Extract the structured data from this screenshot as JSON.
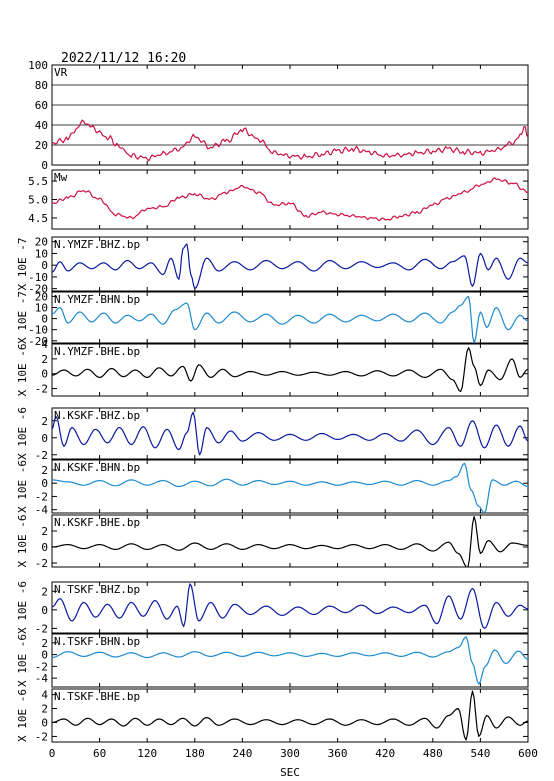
{
  "timestamp": "2022/11/12  16:20",
  "chart_data": {
    "type": "line",
    "xlabel": "SEC",
    "xlim": [
      0,
      600
    ],
    "xticks": [
      0,
      60,
      120,
      180,
      240,
      300,
      360,
      420,
      480,
      540,
      600
    ],
    "colors": {
      "vr_mw": "#cc1144",
      "dark_blue": "#0a1aa0",
      "light_blue": "#1c8ad0",
      "black": "#000000"
    },
    "panels": [
      {
        "id": "vr",
        "label": "VR",
        "ylabel": "",
        "ylim": [
          0,
          100
        ],
        "yticks": [
          "0",
          "20",
          "40",
          "60",
          "80",
          "100"
        ],
        "grid": true,
        "color": "#cc1144",
        "x": [
          0,
          20,
          30,
          40,
          50,
          70,
          85,
          100,
          120,
          140,
          160,
          180,
          200,
          220,
          240,
          260,
          280,
          300,
          320,
          340,
          360,
          380,
          400,
          420,
          440,
          460,
          480,
          500,
          520,
          540,
          560,
          580,
          590,
          595,
          600
        ],
        "y": [
          22,
          26,
          36,
          44,
          37,
          28,
          18,
          9,
          7,
          11,
          16,
          28,
          18,
          24,
          35,
          26,
          12,
          9,
          8,
          11,
          14,
          16,
          13,
          9,
          10,
          12,
          14,
          16,
          13,
          12,
          15,
          22,
          28,
          38,
          28
        ]
      },
      {
        "id": "mw",
        "label": "Mw",
        "ylabel": "",
        "ylim": [
          4.2,
          5.8
        ],
        "yticks": [
          "4.5",
          "5.0",
          "5.5"
        ],
        "grid": false,
        "color": "#cc1144",
        "x": [
          0,
          20,
          40,
          60,
          80,
          100,
          120,
          140,
          160,
          180,
          200,
          220,
          240,
          260,
          280,
          300,
          320,
          340,
          360,
          380,
          400,
          420,
          440,
          460,
          480,
          500,
          520,
          540,
          560,
          580,
          600
        ],
        "y": [
          4.9,
          5.05,
          5.25,
          5.0,
          4.6,
          4.5,
          4.75,
          4.8,
          5.05,
          5.15,
          5.0,
          5.2,
          5.35,
          5.2,
          4.85,
          4.9,
          4.55,
          4.65,
          4.6,
          4.55,
          4.5,
          4.45,
          4.55,
          4.65,
          4.85,
          5.05,
          5.2,
          5.4,
          5.55,
          5.45,
          5.2
        ]
      },
      {
        "id": "ymzf_bhz",
        "label": "N.YMZF.BHZ.bp",
        "ylabel": "X 10E -7",
        "ylim": [
          -22,
          24
        ],
        "yticks": [
          "-20",
          "-10",
          "0",
          "10",
          "20"
        ],
        "grid": false,
        "color": "#0a1aa0",
        "x": [
          0,
          10,
          20,
          35,
          50,
          65,
          80,
          95,
          110,
          125,
          140,
          150,
          160,
          165,
          170,
          175,
          180,
          195,
          210,
          230,
          250,
          270,
          290,
          310,
          330,
          350,
          370,
          390,
          410,
          430,
          450,
          470,
          490,
          505,
          520,
          530,
          540,
          550,
          560,
          575,
          590,
          600
        ],
        "y": [
          -6,
          3,
          -5,
          2,
          -3,
          2,
          -4,
          4,
          -3,
          2,
          -8,
          6,
          -12,
          14,
          18,
          -8,
          -20,
          6,
          -5,
          3,
          -4,
          4,
          -3,
          3,
          -5,
          4,
          -3,
          3,
          -2,
          2,
          -4,
          5,
          -3,
          3,
          8,
          -18,
          10,
          -4,
          6,
          -12,
          6,
          2
        ]
      },
      {
        "id": "ymzf_bhn",
        "label": "N.YMZF.BHN.bp",
        "ylabel": "X 10E -7",
        "ylim": [
          -22,
          24
        ],
        "yticks": [
          "-20",
          "-10",
          "0",
          "10",
          "20"
        ],
        "grid": false,
        "color": "#1c8ad0",
        "x": [
          0,
          10,
          20,
          35,
          50,
          65,
          80,
          95,
          110,
          125,
          140,
          155,
          170,
          180,
          195,
          210,
          230,
          250,
          270,
          290,
          310,
          330,
          350,
          370,
          390,
          410,
          430,
          450,
          470,
          490,
          505,
          515,
          525,
          532,
          540,
          548,
          560,
          575,
          590,
          600
        ],
        "y": [
          4,
          10,
          -4,
          6,
          -3,
          5,
          -4,
          3,
          -2,
          4,
          -5,
          8,
          14,
          -10,
          5,
          -4,
          6,
          -3,
          4,
          -5,
          3,
          -4,
          4,
          -3,
          3,
          -2,
          4,
          -3,
          5,
          -4,
          6,
          12,
          20,
          -22,
          6,
          -8,
          10,
          -10,
          3,
          -2
        ]
      },
      {
        "id": "ymzf_bhe",
        "label": "N.YMZF.BHE.bp",
        "ylabel": "X 10E -6",
        "ylim": [
          -3,
          4
        ],
        "yticks": [
          "-2",
          "0",
          "2",
          "4"
        ],
        "grid": false,
        "color": "#000000",
        "x": [
          0,
          15,
          30,
          45,
          60,
          75,
          90,
          105,
          120,
          135,
          150,
          165,
          175,
          185,
          200,
          215,
          230,
          250,
          270,
          290,
          310,
          330,
          350,
          370,
          390,
          410,
          430,
          450,
          470,
          490,
          505,
          515,
          525,
          532,
          540,
          550,
          565,
          580,
          590,
          600
        ],
        "y": [
          -0.2,
          0.5,
          -0.3,
          0.6,
          -0.5,
          0.7,
          -0.4,
          0.5,
          -0.5,
          0.8,
          -0.3,
          1.0,
          -1.0,
          1.2,
          -0.5,
          0.6,
          -0.4,
          0.3,
          -0.2,
          0.3,
          -0.2,
          0.2,
          -0.2,
          0.3,
          -0.3,
          0.4,
          -0.3,
          0.5,
          -0.5,
          0.6,
          -0.8,
          -2.4,
          3.5,
          1.0,
          -1.6,
          0.5,
          -0.8,
          2.0,
          -0.5,
          0.6
        ]
      },
      {
        "id": "kskf_bhz",
        "label": "N.KSKF.BHZ.bp",
        "ylabel": "X 10E -6",
        "ylim": [
          -2.5,
          3.5
        ],
        "yticks": [
          "-2",
          "0",
          "2"
        ],
        "grid": false,
        "color": "#0a1aa0",
        "x": [
          0,
          5,
          15,
          25,
          40,
          55,
          70,
          85,
          100,
          115,
          130,
          145,
          160,
          170,
          178,
          186,
          195,
          210,
          225,
          240,
          260,
          280,
          300,
          320,
          340,
          360,
          380,
          400,
          420,
          440,
          460,
          480,
          500,
          515,
          530,
          545,
          560,
          575,
          590,
          600
        ],
        "y": [
          1.0,
          2.5,
          -1.0,
          1.2,
          -0.8,
          1.0,
          -0.6,
          1.2,
          -0.8,
          1.3,
          -1.2,
          1.0,
          -1.4,
          0.6,
          3.0,
          -2.0,
          1.2,
          -0.6,
          0.8,
          -0.4,
          0.6,
          -0.3,
          0.4,
          -0.3,
          0.5,
          -0.2,
          0.4,
          -0.3,
          0.5,
          -0.4,
          0.9,
          -0.8,
          1.2,
          -1.0,
          2.0,
          -1.2,
          1.5,
          -1.0,
          1.4,
          -0.4
        ]
      },
      {
        "id": "kskf_bhn",
        "label": "N.KSKF.BHN.bp",
        "ylabel": "X 10E -6",
        "ylim": [
          -4.5,
          3.5
        ],
        "yticks": [
          "-4",
          "-2",
          "0",
          "2"
        ],
        "grid": false,
        "color": "#1c8ad0",
        "x": [
          0,
          20,
          40,
          60,
          80,
          100,
          120,
          140,
          160,
          180,
          200,
          220,
          240,
          260,
          280,
          300,
          320,
          340,
          360,
          380,
          400,
          420,
          440,
          460,
          480,
          500,
          510,
          520,
          528,
          538,
          545,
          555,
          570,
          585,
          600
        ],
        "y": [
          0.5,
          0.2,
          -0.3,
          0.4,
          -0.4,
          0.5,
          -0.3,
          0.4,
          -0.5,
          0.3,
          -0.4,
          0.6,
          -0.3,
          0.4,
          -0.2,
          0.3,
          -0.3,
          0.2,
          -0.3,
          0.2,
          -0.2,
          0.3,
          -0.3,
          0.4,
          -0.3,
          0.4,
          1.0,
          3.0,
          -1.0,
          -3.5,
          -4.5,
          0.5,
          -0.3,
          0.3,
          -0.5
        ]
      },
      {
        "id": "kskf_bhe",
        "label": "N.KSKF.BHE.bp",
        "ylabel": "X 10E -6",
        "ylim": [
          -2.5,
          4
        ],
        "yticks": [
          "-2",
          "0",
          "2"
        ],
        "grid": false,
        "color": "#000000",
        "x": [
          0,
          20,
          40,
          60,
          80,
          100,
          120,
          140,
          160,
          180,
          200,
          220,
          240,
          260,
          280,
          300,
          320,
          340,
          360,
          380,
          400,
          420,
          440,
          460,
          480,
          500,
          512,
          524,
          532,
          540,
          550,
          565,
          580,
          600
        ],
        "y": [
          0.0,
          0.3,
          -0.2,
          0.3,
          -0.3,
          0.4,
          -0.3,
          0.3,
          -0.4,
          0.5,
          -0.3,
          0.4,
          -0.3,
          0.3,
          -0.2,
          0.3,
          -0.2,
          0.2,
          -0.2,
          0.3,
          -0.2,
          0.3,
          -0.3,
          0.4,
          -0.5,
          0.6,
          -0.8,
          -2.6,
          3.8,
          -0.8,
          0.8,
          -0.6,
          0.5,
          0.2
        ]
      },
      {
        "id": "tskf_bhz",
        "label": "N.TSKF.BHZ.bp",
        "ylabel": "X 10E -6",
        "ylim": [
          -2.5,
          3
        ],
        "yticks": [
          "-2",
          "0",
          "2"
        ],
        "grid": false,
        "color": "#0a1aa0",
        "x": [
          0,
          10,
          25,
          40,
          55,
          70,
          85,
          100,
          115,
          130,
          145,
          158,
          166,
          174,
          185,
          200,
          215,
          230,
          250,
          270,
          290,
          310,
          330,
          350,
          370,
          390,
          410,
          430,
          450,
          470,
          485,
          500,
          515,
          530,
          545,
          560,
          575,
          590,
          600
        ],
        "y": [
          0.3,
          1.2,
          -1.2,
          0.8,
          -0.8,
          0.6,
          -0.9,
          0.8,
          -0.7,
          1.0,
          -1.0,
          0.4,
          -1.8,
          2.8,
          -1.2,
          0.8,
          -0.9,
          0.6,
          -0.5,
          0.4,
          -0.6,
          0.3,
          -0.5,
          0.4,
          -0.3,
          0.5,
          -0.4,
          0.3,
          -0.3,
          0.5,
          -1.5,
          1.5,
          -1.0,
          2.3,
          -2.0,
          0.8,
          -0.7,
          0.5,
          0.1
        ]
      },
      {
        "id": "tskf_bhn",
        "label": "N.TSKF.BHN.bp",
        "ylabel": "X 10E -6",
        "ylim": [
          -5.5,
          3.5
        ],
        "yticks": [
          "-4",
          "-2",
          "0",
          "2"
        ],
        "grid": false,
        "color": "#1c8ad0",
        "x": [
          0,
          20,
          40,
          60,
          80,
          100,
          120,
          140,
          160,
          180,
          200,
          220,
          240,
          260,
          280,
          300,
          320,
          340,
          360,
          380,
          400,
          420,
          440,
          460,
          480,
          500,
          512,
          522,
          530,
          538,
          546,
          558,
          572,
          588,
          600
        ],
        "y": [
          -0.5,
          0.5,
          -0.3,
          0.4,
          -0.4,
          0.3,
          -0.5,
          0.3,
          -0.4,
          0.5,
          -0.3,
          0.4,
          -0.3,
          0.4,
          -0.2,
          0.3,
          -0.3,
          0.2,
          -0.3,
          0.3,
          -0.2,
          0.3,
          -0.3,
          0.4,
          -0.4,
          0.5,
          1.2,
          3.0,
          -1.5,
          -5.0,
          -2.0,
          0.8,
          -1.5,
          0.6,
          -0.8
        ]
      },
      {
        "id": "tskf_bhe",
        "label": "N.TSKF.BHE.bp",
        "ylabel": "X 10E -6",
        "ylim": [
          -2.8,
          4.8
        ],
        "yticks": [
          "-2",
          "0",
          "2",
          "4"
        ],
        "grid": false,
        "color": "#000000",
        "x": [
          0,
          15,
          30,
          45,
          60,
          75,
          90,
          105,
          120,
          135,
          150,
          165,
          180,
          195,
          210,
          230,
          250,
          270,
          290,
          310,
          330,
          350,
          370,
          390,
          410,
          430,
          450,
          470,
          485,
          500,
          512,
          522,
          530,
          538,
          548,
          560,
          575,
          590,
          600
        ],
        "y": [
          0.0,
          0.5,
          -0.4,
          0.6,
          -0.3,
          0.5,
          -0.5,
          0.6,
          -0.4,
          0.5,
          -0.3,
          0.6,
          -0.5,
          0.7,
          -0.4,
          0.5,
          -0.3,
          0.4,
          -0.3,
          0.4,
          -0.3,
          0.5,
          -0.4,
          0.4,
          -0.3,
          0.5,
          -0.4,
          0.6,
          -0.8,
          1.0,
          2.0,
          -2.5,
          4.5,
          -2.0,
          1.0,
          -0.8,
          0.8,
          -0.4,
          0.2
        ]
      }
    ]
  }
}
